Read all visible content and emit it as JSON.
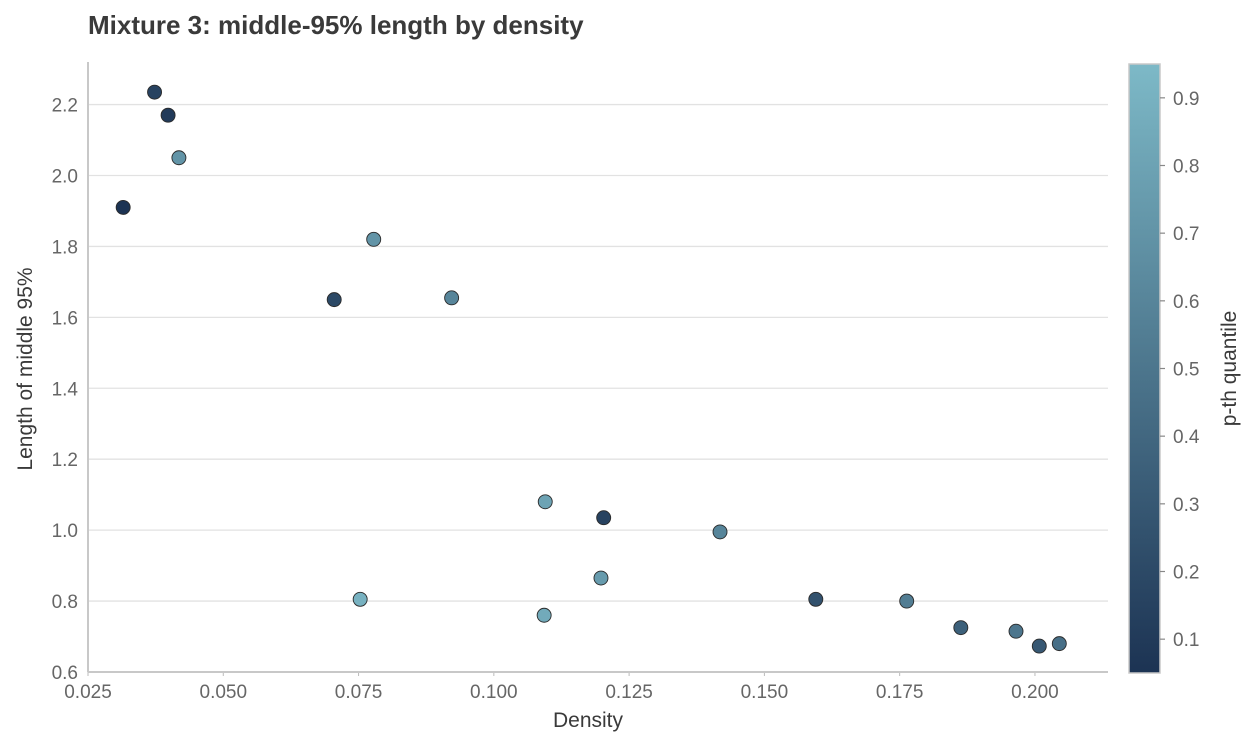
{
  "chart_data": {
    "type": "scatter",
    "title": "Mixture 3: middle-95% length by density",
    "xlabel": "Density",
    "ylabel": "Length of middle 95%",
    "xlim": [
      0.025,
      0.2135
    ],
    "ylim": [
      0.6,
      2.32
    ],
    "xticks": [
      "0.025",
      "0.050",
      "0.075",
      "0.100",
      "0.125",
      "0.150",
      "0.175",
      "0.200"
    ],
    "yticks": [
      "0.6",
      "0.8",
      "1.0",
      "1.2",
      "1.4",
      "1.6",
      "1.8",
      "2.0",
      "2.2"
    ],
    "grid": "horizontal",
    "colorbar": {
      "label": "p-th quantile",
      "range": [
        0.05,
        0.95
      ],
      "ticks": [
        "0.1",
        "0.2",
        "0.3",
        "0.4",
        "0.5",
        "0.6",
        "0.7",
        "0.8",
        "0.9"
      ],
      "color_low": "#1c3353",
      "color_high": "#7db9c7"
    },
    "points": [
      {
        "x": 0.0315,
        "y": 1.91,
        "p": 0.05
      },
      {
        "x": 0.0373,
        "y": 2.235,
        "p": 0.15
      },
      {
        "x": 0.0398,
        "y": 2.17,
        "p": 0.1
      },
      {
        "x": 0.0418,
        "y": 2.05,
        "p": 0.7
      },
      {
        "x": 0.0705,
        "y": 1.65,
        "p": 0.2
      },
      {
        "x": 0.0778,
        "y": 1.82,
        "p": 0.7
      },
      {
        "x": 0.0753,
        "y": 0.805,
        "p": 0.9
      },
      {
        "x": 0.0922,
        "y": 1.655,
        "p": 0.6
      },
      {
        "x": 0.1095,
        "y": 1.08,
        "p": 0.8
      },
      {
        "x": 0.1093,
        "y": 0.76,
        "p": 0.85
      },
      {
        "x": 0.1203,
        "y": 1.035,
        "p": 0.15
      },
      {
        "x": 0.1198,
        "y": 0.865,
        "p": 0.75
      },
      {
        "x": 0.1418,
        "y": 0.995,
        "p": 0.6
      },
      {
        "x": 0.1595,
        "y": 0.805,
        "p": 0.25
      },
      {
        "x": 0.1763,
        "y": 0.8,
        "p": 0.55
      },
      {
        "x": 0.1863,
        "y": 0.725,
        "p": 0.35
      },
      {
        "x": 0.1965,
        "y": 0.715,
        "p": 0.5
      },
      {
        "x": 0.2008,
        "y": 0.673,
        "p": 0.3
      },
      {
        "x": 0.2045,
        "y": 0.68,
        "p": 0.45
      }
    ]
  }
}
